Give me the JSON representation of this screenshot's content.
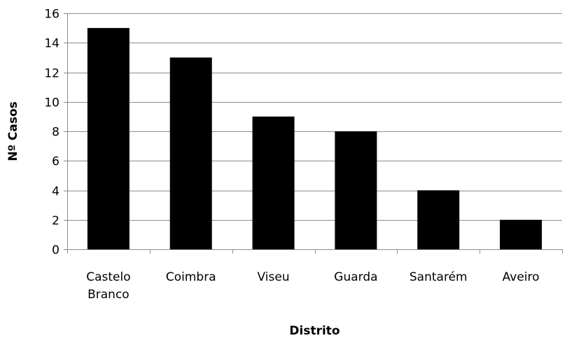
{
  "chart_data": {
    "type": "bar",
    "title": "",
    "xlabel": "Distrito",
    "ylabel": "Nº Casos",
    "categories": [
      [
        "Castelo",
        "Branco"
      ],
      [
        "Coimbra"
      ],
      [
        "Viseu"
      ],
      [
        "Guarda"
      ],
      [
        "Santarém"
      ],
      [
        "Aveiro"
      ]
    ],
    "values": [
      15,
      13,
      9,
      8,
      4,
      2
    ],
    "ylim": [
      0,
      16
    ],
    "yticks": [
      0,
      2,
      4,
      6,
      8,
      10,
      12,
      14,
      16
    ],
    "grid": true,
    "legend": "none",
    "bar_color": "#000000",
    "grid_color": "#8c8c8c"
  }
}
